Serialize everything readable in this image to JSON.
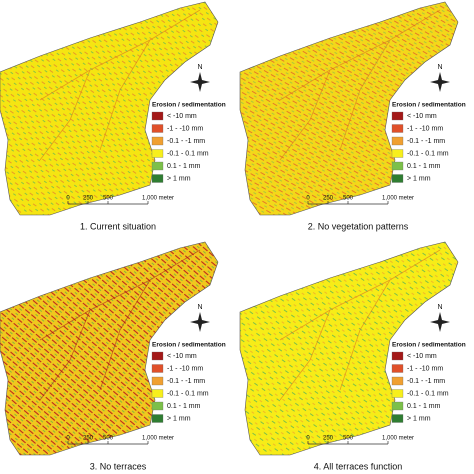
{
  "panels": [
    {
      "caption": "1. Current situation",
      "north": "N",
      "legend": {
        "title": "Erosion / sedimentation",
        "items": [
          {
            "label": "< -10 mm",
            "color": "#a31919"
          },
          {
            "label": "-1 - -10 mm",
            "color": "#e0502a"
          },
          {
            "label": "-0.1 - -1 mm",
            "color": "#f0a030"
          },
          {
            "label": "-0.1 - 0.1 mm",
            "color": "#f7ef1c"
          },
          {
            "label": "0.1 - 1 mm",
            "color": "#7cc04a"
          },
          {
            "label": "> 1 mm",
            "color": "#2f7d32"
          }
        ]
      },
      "scale": [
        "0",
        "250",
        "500",
        "1,000 meter"
      ]
    },
    {
      "caption": "2. No vegetation patterns",
      "north": "N",
      "legend": {
        "title": "Erosion / sedimentation",
        "items": [
          {
            "label": "< -10 mm",
            "color": "#a31919"
          },
          {
            "label": "-1 - -10 mm",
            "color": "#e0502a"
          },
          {
            "label": "-0.1 - -1 mm",
            "color": "#f0a030"
          },
          {
            "label": "-0.1 - 0.1 mm",
            "color": "#f7ef1c"
          },
          {
            "label": "0.1 - 1 mm",
            "color": "#7cc04a"
          },
          {
            "label": "> 1 mm",
            "color": "#2f7d32"
          }
        ]
      },
      "scale": [
        "0",
        "250",
        "500",
        "1,000 meter"
      ]
    },
    {
      "caption": "3. No terraces",
      "north": "N",
      "legend": {
        "title": "Erosion / sedimentation",
        "items": [
          {
            "label": "< -10 mm",
            "color": "#a31919"
          },
          {
            "label": "-1 - -10 mm",
            "color": "#e0502a"
          },
          {
            "label": "-0.1 - -1 mm",
            "color": "#f0a030"
          },
          {
            "label": "-0.1 - 0.1 mm",
            "color": "#f7ef1c"
          },
          {
            "label": "0.1 - 1 mm",
            "color": "#7cc04a"
          },
          {
            "label": "> 1 mm",
            "color": "#2f7d32"
          }
        ]
      },
      "scale": [
        "0",
        "250",
        "500",
        "1,000 meter"
      ]
    },
    {
      "caption": "4. All terraces function",
      "north": "N",
      "legend": {
        "title": "Erosion / sedimentation",
        "items": [
          {
            "label": "< -10 mm",
            "color": "#a31919"
          },
          {
            "label": "-1 - -10 mm",
            "color": "#e0502a"
          },
          {
            "label": "-0.1 - -1 mm",
            "color": "#f0a030"
          },
          {
            "label": "-0.1 - 0.1 mm",
            "color": "#f7ef1c"
          },
          {
            "label": "0.1 - 1 mm",
            "color": "#7cc04a"
          },
          {
            "label": "> 1 mm",
            "color": "#2f7d32"
          }
        ]
      },
      "scale": [
        "0",
        "250",
        "500",
        "1,000 meter"
      ]
    }
  ]
}
